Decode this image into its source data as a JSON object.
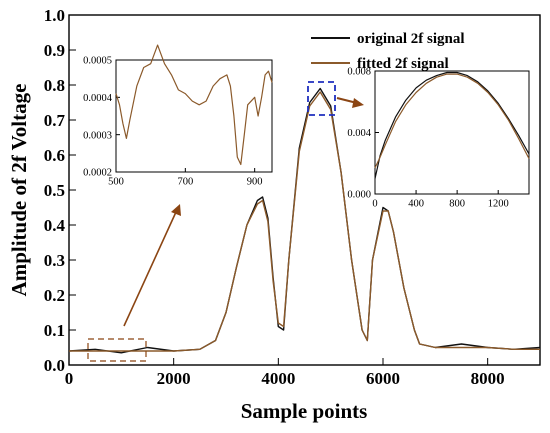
{
  "chart_data": [
    {
      "type": "line",
      "xlabel": "Sample points",
      "ylabel": "Amplitude of 2f Voltage",
      "xlim": [
        0,
        9000
      ],
      "ylim": [
        0.0,
        1.0
      ],
      "x_ticks": [
        "0",
        "2000",
        "4000",
        "6000",
        "8000"
      ],
      "y_ticks": [
        "0.0",
        "0.1",
        "0.2",
        "0.3",
        "0.4",
        "0.5",
        "0.6",
        "0.7",
        "0.8",
        "0.9",
        "1.0"
      ],
      "legend_position": "top-right",
      "series": [
        {
          "name": "original 2f signal",
          "color": "#111111",
          "x": [
            0,
            500,
            1000,
            1500,
            2000,
            2500,
            2800,
            3000,
            3200,
            3400,
            3600,
            3700,
            3800,
            3900,
            4000,
            4100,
            4200,
            4400,
            4600,
            4800,
            5000,
            5200,
            5400,
            5600,
            5700,
            5800,
            6000,
            6100,
            6200,
            6400,
            6600,
            6700,
            7000,
            7500,
            8000,
            8500,
            9000
          ],
          "y": [
            0.04,
            0.045,
            0.035,
            0.05,
            0.04,
            0.045,
            0.07,
            0.15,
            0.28,
            0.4,
            0.47,
            0.48,
            0.42,
            0.25,
            0.11,
            0.1,
            0.3,
            0.62,
            0.75,
            0.79,
            0.74,
            0.55,
            0.3,
            0.1,
            0.07,
            0.3,
            0.45,
            0.44,
            0.38,
            0.22,
            0.1,
            0.06,
            0.05,
            0.06,
            0.05,
            0.045,
            0.05
          ]
        },
        {
          "name": "fitted 2f signal",
          "color": "#8b5a2b",
          "x": [
            0,
            500,
            1000,
            1500,
            2000,
            2500,
            2800,
            3000,
            3200,
            3400,
            3600,
            3700,
            3800,
            3900,
            4000,
            4100,
            4200,
            4400,
            4600,
            4800,
            5000,
            5200,
            5400,
            5600,
            5700,
            5800,
            6000,
            6100,
            6200,
            6400,
            6600,
            6700,
            7000,
            7500,
            8000,
            8500,
            9000
          ],
          "y": [
            0.04,
            0.04,
            0.04,
            0.04,
            0.04,
            0.045,
            0.07,
            0.15,
            0.28,
            0.4,
            0.46,
            0.47,
            0.41,
            0.24,
            0.12,
            0.11,
            0.3,
            0.61,
            0.74,
            0.78,
            0.73,
            0.55,
            0.3,
            0.1,
            0.07,
            0.3,
            0.44,
            0.44,
            0.38,
            0.22,
            0.1,
            0.06,
            0.05,
            0.05,
            0.05,
            0.045,
            0.045
          ]
        }
      ]
    },
    {
      "type": "line",
      "position": "inset upper-left",
      "xlim": [
        500,
        950
      ],
      "ylim": [
        0.0002,
        0.0005
      ],
      "x_ticks": [
        "500",
        "700",
        "900"
      ],
      "y_ticks": [
        "0.0002",
        "0.0003",
        "0.0004",
        "0.0005"
      ],
      "series": [
        {
          "color": "#8b5a2b",
          "x": [
            500,
            510,
            520,
            530,
            540,
            560,
            580,
            600,
            620,
            640,
            660,
            680,
            700,
            720,
            740,
            760,
            780,
            800,
            820,
            830,
            840,
            850,
            860,
            870,
            880,
            900,
            910,
            920,
            930,
            940,
            950
          ],
          "y": [
            0.00041,
            0.00038,
            0.00033,
            0.00029,
            0.00034,
            0.00043,
            0.00048,
            0.00049,
            0.00054,
            0.00049,
            0.00046,
            0.00042,
            0.00041,
            0.00039,
            0.00038,
            0.00039,
            0.00043,
            0.00045,
            0.00046,
            0.00043,
            0.00035,
            0.00024,
            0.00022,
            0.0003,
            0.00038,
            0.0004,
            0.00035,
            0.0004,
            0.00046,
            0.00047,
            0.00044
          ]
        }
      ]
    },
    {
      "type": "line",
      "position": "inset upper-right",
      "xlim": [
        0,
        1500
      ],
      "ylim": [
        0.0,
        0.008
      ],
      "x_ticks": [
        "0",
        "400",
        "800",
        "1200"
      ],
      "y_ticks": [
        "0.000",
        "0.004",
        "0.008"
      ],
      "series": [
        {
          "color": "#111111",
          "x": [
            0,
            50,
            100,
            200,
            300,
            400,
            500,
            600,
            700,
            800,
            900,
            1000,
            1100,
            1200,
            1300,
            1400,
            1500
          ],
          "y": [
            0.001,
            0.0025,
            0.0035,
            0.005,
            0.0061,
            0.0069,
            0.0074,
            0.0077,
            0.0079,
            0.0079,
            0.0077,
            0.0073,
            0.0067,
            0.0059,
            0.0049,
            0.0038,
            0.0026
          ]
        },
        {
          "color": "#8b5a2b",
          "x": [
            0,
            50,
            100,
            200,
            300,
            400,
            500,
            600,
            700,
            800,
            900,
            1000,
            1100,
            1200,
            1300,
            1400,
            1500
          ],
          "y": [
            0.0017,
            0.0024,
            0.0032,
            0.0047,
            0.0058,
            0.0066,
            0.0072,
            0.0076,
            0.0078,
            0.0078,
            0.0076,
            0.0072,
            0.0066,
            0.0058,
            0.0048,
            0.0036,
            0.0023
          ]
        }
      ]
    }
  ],
  "colors": {
    "arrow": "#8b4513",
    "left_highlight_box": "#8b4513",
    "peak_highlight_box": "#1f2fbf"
  }
}
